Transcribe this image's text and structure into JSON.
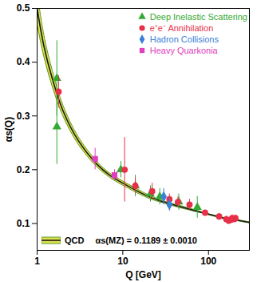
{
  "chart_data": {
    "type": "scatter",
    "x_label": "Q [GeV]",
    "y_label": "αs(Q)",
    "log": "x",
    "grid": false,
    "legend": "top-right",
    "xlim": [
      1,
      300
    ],
    "xticks": [
      1,
      10,
      100
    ],
    "ylim": [
      0.05,
      0.5
    ],
    "yticks": [
      0.1,
      0.2,
      0.3,
      0.4,
      0.5
    ],
    "annotation": "αs(MZ) = 0.1189 ± 0.0010",
    "series": [
      {
        "name": "Deep Inelastic Scattering",
        "type": "scatter",
        "color": "#33aa33",
        "marker": "triangle",
        "x": [
          1.7,
          1.7,
          9.5,
          14,
          21,
          27,
          45,
          74
        ],
        "values": [
          0.37,
          0.28,
          0.2,
          0.17,
          0.155,
          0.15,
          0.14,
          0.13
        ],
        "errors": [
          0.07,
          0.07,
          0.015,
          0.02,
          0.015,
          0.015,
          0.015,
          0.02
        ]
      },
      {
        "name": "e⁺e⁻ Annihilation",
        "type": "scatter",
        "color": "#e8304a",
        "marker": "circle",
        "x": [
          1.78,
          10.5,
          14,
          22,
          35,
          44,
          60,
          91.2,
          133,
          161,
          172,
          183,
          189,
          200,
          206
        ],
        "values": [
          0.345,
          0.2,
          0.17,
          0.16,
          0.145,
          0.14,
          0.135,
          0.12,
          0.113,
          0.108,
          0.105,
          0.107,
          0.11,
          0.108,
          0.11
        ],
        "errors": [
          0.03,
          0.06,
          0.015,
          0.015,
          0.01,
          0.01,
          0.01,
          0.004,
          0.006,
          0.006,
          0.006,
          0.006,
          0.006,
          0.006,
          0.006
        ]
      },
      {
        "name": "Hadron Collisions",
        "type": "scatter",
        "color": "#3a7fd8",
        "marker": "diamond",
        "x": [
          30,
          35
        ],
        "values": [
          0.15,
          0.135
        ],
        "errors": [
          0.015,
          0.012
        ]
      },
      {
        "name": "Heavy Quarkonia",
        "type": "scatter",
        "color": "#e040c0",
        "marker": "square",
        "x": [
          4.75,
          8
        ],
        "values": [
          0.22,
          0.19
        ],
        "errors": [
          0.02,
          0.01
        ]
      },
      {
        "name": "QCD",
        "type": "line",
        "color": "#1a1a1a",
        "x": [
          1,
          1.2,
          1.5,
          2,
          3,
          5,
          7,
          10,
          20,
          30,
          50,
          91.2,
          150,
          200,
          300
        ],
        "values": [
          0.5,
          0.43,
          0.37,
          0.31,
          0.255,
          0.21,
          0.19,
          0.175,
          0.15,
          0.14,
          0.13,
          0.119,
          0.11,
          0.107,
          0.102
        ],
        "lower": [
          0.47,
          0.41,
          0.355,
          0.3,
          0.248,
          0.205,
          0.186,
          0.171,
          0.147,
          0.138,
          0.128,
          0.118,
          0.109,
          0.106,
          0.101
        ],
        "upper": [
          0.53,
          0.45,
          0.385,
          0.32,
          0.262,
          0.215,
          0.194,
          0.179,
          0.153,
          0.142,
          0.132,
          0.12,
          0.111,
          0.108,
          0.103
        ]
      }
    ]
  }
}
